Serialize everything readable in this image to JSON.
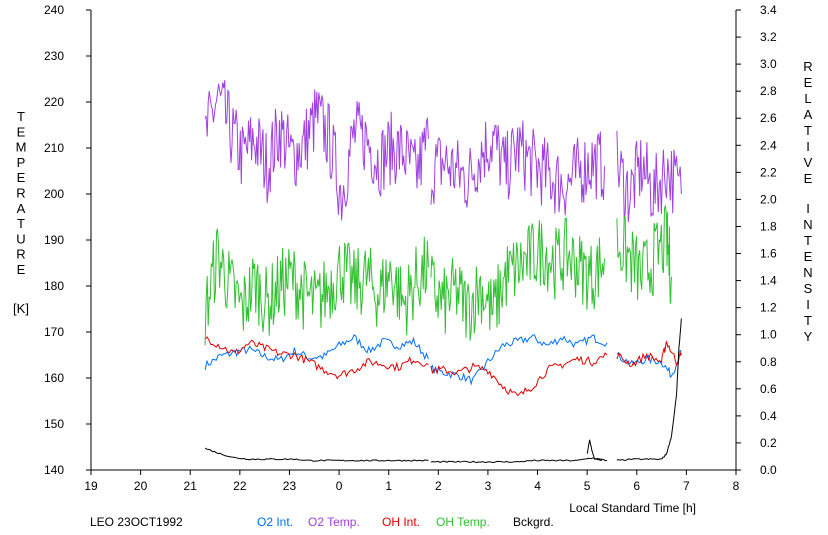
{
  "chart_data": {
    "type": "line",
    "title": "",
    "caption": "LEO 23OCT1992",
    "xlabel": "Local Standard Time [h]",
    "x_ticks": [
      "19",
      "20",
      "21",
      "22",
      "23",
      "0",
      "1",
      "2",
      "3",
      "4",
      "5",
      "6",
      "7",
      "8"
    ],
    "xlim": [
      19,
      32
    ],
    "ylabel_left_letters": [
      "T",
      "E",
      "M",
      "P",
      "E",
      "R",
      "A",
      "T",
      "U",
      "R",
      "E"
    ],
    "ylabel_left_unit": "[K]",
    "ylim_left": [
      140,
      240
    ],
    "y_ticks_left": [
      "140",
      "150",
      "160",
      "170",
      "180",
      "190",
      "200",
      "210",
      "220",
      "230",
      "240"
    ],
    "ylabel_right_words": [
      [
        "R",
        "E",
        "L",
        "A",
        "T",
        "I",
        "V",
        "E"
      ],
      [
        "I",
        "N",
        "T",
        "E",
        "N",
        "S",
        "I",
        "T",
        "Y"
      ]
    ],
    "ylim_right": [
      0.0,
      3.4
    ],
    "y_ticks_right": [
      "0.0",
      "0.2",
      "0.4",
      "0.6",
      "0.8",
      "1.0",
      "1.2",
      "1.4",
      "1.6",
      "1.8",
      "2.0",
      "2.2",
      "2.4",
      "2.6",
      "2.8",
      "3.0",
      "3.2",
      "3.4"
    ],
    "grid": false,
    "legend_position": "bottom",
    "series": [
      {
        "name": "O2 Int.",
        "color": "#0070ff",
        "axis": "right",
        "segments": [
          {
            "x": [
              21.3,
              21.6,
              21.9,
              22.2,
              22.5,
              22.8,
              23.1,
              23.4,
              23.7,
              24.0,
              24.3,
              24.6,
              24.9,
              25.2,
              25.5,
              25.8
            ],
            "y": [
              0.77,
              0.84,
              0.87,
              0.89,
              0.84,
              0.81,
              0.88,
              0.83,
              0.84,
              0.92,
              0.98,
              0.88,
              0.95,
              0.92,
              0.95,
              0.82
            ]
          },
          {
            "x": [
              25.85,
              26.1,
              26.4,
              26.7,
              27.0,
              27.3,
              27.6,
              27.9,
              28.2,
              28.5,
              28.8,
              29.1,
              29.4
            ],
            "y": [
              0.75,
              0.72,
              0.7,
              0.66,
              0.8,
              0.92,
              0.95,
              0.98,
              0.92,
              0.98,
              0.92,
              0.98,
              0.94
            ]
          },
          {
            "x": [
              29.6,
              29.9,
              30.2,
              30.5,
              30.7,
              30.9
            ],
            "y": [
              0.85,
              0.78,
              0.82,
              0.8,
              0.7,
              0.88
            ]
          }
        ]
      },
      {
        "name": "O2 Temp.",
        "color": "#a040e0",
        "axis": "left",
        "segments": [
          {
            "x": [
              21.3,
              21.55,
              21.8,
              22.05,
              22.3,
              22.55,
              22.8,
              23.05,
              23.3,
              23.55,
              23.8,
              24.05,
              24.3,
              24.55,
              24.8,
              25.05,
              25.3,
              25.55,
              25.8
            ],
            "y": [
              212,
              221,
              214,
              208,
              212,
              206,
              214,
              208,
              211,
              217,
              212,
              200,
              213,
              212,
              207,
              210,
              209,
              204,
              212
            ]
          },
          {
            "x": [
              25.85,
              26.1,
              26.35,
              26.6,
              26.85,
              27.1,
              27.35,
              27.6,
              27.85,
              28.1,
              28.35,
              28.6,
              28.85,
              29.1,
              29.35
            ],
            "y": [
              205,
              207,
              205,
              203,
              209,
              212,
              205,
              210,
              207,
              205,
              203,
              202,
              205,
              207,
              206
            ]
          },
          {
            "x": [
              29.6,
              29.85,
              30.1,
              30.35,
              30.6,
              30.9
            ],
            "y": [
              206,
              200,
              206,
              200,
              206,
              200
            ]
          }
        ]
      },
      {
        "name": "OH Int.",
        "color": "#e00000",
        "axis": "right",
        "segments": [
          {
            "x": [
              21.3,
              21.6,
              21.9,
              22.2,
              22.5,
              22.8,
              23.1,
              23.4,
              23.7,
              24.0,
              24.3,
              24.6,
              24.9,
              25.2,
              25.5,
              25.8
            ],
            "y": [
              0.98,
              0.92,
              0.86,
              0.94,
              0.9,
              0.86,
              0.85,
              0.8,
              0.74,
              0.7,
              0.74,
              0.8,
              0.78,
              0.76,
              0.82,
              0.78
            ]
          },
          {
            "x": [
              25.85,
              26.1,
              26.4,
              26.7,
              27.0,
              27.3,
              27.6,
              27.9,
              28.2,
              28.5,
              28.8,
              29.1,
              29.4
            ],
            "y": [
              0.74,
              0.74,
              0.72,
              0.76,
              0.74,
              0.62,
              0.54,
              0.62,
              0.74,
              0.78,
              0.82,
              0.8,
              0.85
            ]
          },
          {
            "x": [
              29.6,
              29.9,
              30.2,
              30.5,
              30.6,
              30.8,
              30.9
            ],
            "y": [
              0.85,
              0.78,
              0.85,
              0.8,
              0.95,
              0.8,
              0.85
            ]
          }
        ]
      },
      {
        "name": "OH Temp.",
        "color": "#30c030",
        "axis": "left",
        "segments": [
          {
            "x": [
              21.3,
              21.55,
              21.8,
              22.05,
              22.3,
              22.55,
              22.8,
              23.05,
              23.3,
              23.55,
              23.8,
              24.05,
              24.3,
              24.55,
              24.8,
              25.05,
              25.3,
              25.55,
              25.8
            ],
            "y": [
              174,
              187,
              180,
              175,
              181,
              176,
              180,
              182,
              178,
              176,
              180,
              184,
              180,
              182,
              178,
              183,
              176,
              181,
              184
            ]
          },
          {
            "x": [
              25.85,
              26.1,
              26.35,
              26.6,
              26.85,
              27.1,
              27.35,
              27.6,
              27.85,
              28.1,
              28.35,
              28.6,
              28.85,
              29.1,
              29.35
            ],
            "y": [
              180,
              176,
              179,
              175,
              180,
              174,
              182,
              184,
              186,
              188,
              185,
              187,
              184,
              182,
              186
            ]
          },
          {
            "x": [
              29.6,
              29.85,
              30.1,
              30.35,
              30.6,
              30.7
            ],
            "y": [
              190,
              186,
              182,
              186,
              190,
              182
            ]
          }
        ]
      },
      {
        "name": "Bckgrd.",
        "color": "#000000",
        "axis": "right",
        "segments": [
          {
            "x": [
              21.3,
              21.6,
              21.9,
              22.2,
              22.5,
              22.8,
              23.1,
              23.4,
              23.7,
              24.0,
              24.3,
              24.6,
              24.9,
              25.2,
              25.5,
              25.8
            ],
            "y": [
              0.16,
              0.12,
              0.09,
              0.08,
              0.08,
              0.08,
              0.08,
              0.07,
              0.07,
              0.07,
              0.07,
              0.07,
              0.07,
              0.07,
              0.07,
              0.07
            ]
          },
          {
            "x": [
              25.85,
              26.1,
              26.4,
              26.7,
              27.0,
              27.3,
              27.6,
              27.9,
              28.2,
              28.5,
              28.8,
              29.1,
              29.4
            ],
            "y": [
              0.06,
              0.06,
              0.06,
              0.06,
              0.06,
              0.06,
              0.06,
              0.07,
              0.07,
              0.07,
              0.07,
              0.09,
              0.07
            ]
          },
          {
            "x": [
              29.0,
              29.05,
              29.1,
              29.15,
              29.3
            ],
            "y": [
              0.12,
              0.22,
              0.14,
              0.08,
              0.07
            ]
          },
          {
            "x": [
              29.6,
              29.9,
              30.2,
              30.5,
              30.6,
              30.7,
              30.8,
              30.85,
              30.9
            ],
            "y": [
              0.07,
              0.08,
              0.08,
              0.08,
              0.12,
              0.25,
              0.55,
              0.9,
              1.12
            ]
          }
        ]
      }
    ]
  }
}
